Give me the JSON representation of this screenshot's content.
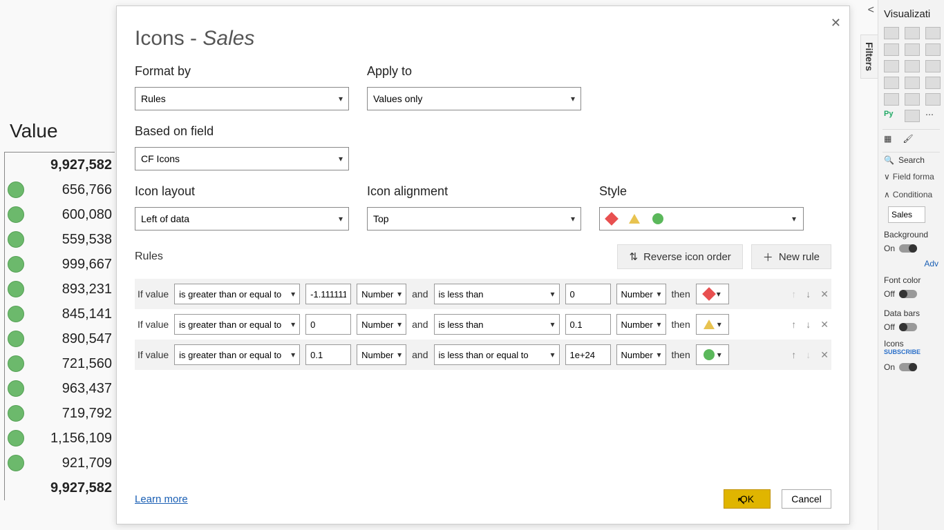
{
  "bg_table": {
    "header": "Value",
    "rows": [
      {
        "val": "9,927,582",
        "bold": true,
        "icon": false
      },
      {
        "val": "656,766",
        "bold": false,
        "icon": true
      },
      {
        "val": "600,080",
        "bold": false,
        "icon": true
      },
      {
        "val": "559,538",
        "bold": false,
        "icon": true
      },
      {
        "val": "999,667",
        "bold": false,
        "icon": true
      },
      {
        "val": "893,231",
        "bold": false,
        "icon": true
      },
      {
        "val": "845,141",
        "bold": false,
        "icon": true
      },
      {
        "val": "890,547",
        "bold": false,
        "icon": true
      },
      {
        "val": "721,560",
        "bold": false,
        "icon": true
      },
      {
        "val": "963,437",
        "bold": false,
        "icon": true
      },
      {
        "val": "719,792",
        "bold": false,
        "icon": true
      },
      {
        "val": "1,156,109",
        "bold": false,
        "icon": true
      },
      {
        "val": "921,709",
        "bold": false,
        "icon": true
      },
      {
        "val": "9,927,582",
        "bold": true,
        "icon": false
      }
    ],
    "icon_color": "#6cb96c",
    "icon_border": "#54a054"
  },
  "dialog": {
    "title_prefix": "Icons - ",
    "title_field": "Sales",
    "close": "✕",
    "labels": {
      "format_by": "Format by",
      "apply_to": "Apply to",
      "based_on": "Based on field",
      "icon_layout": "Icon layout",
      "icon_align": "Icon alignment",
      "style": "Style",
      "rules": "Rules"
    },
    "values": {
      "format_by": "Rules",
      "apply_to": "Values only",
      "based_on": "CF Icons",
      "icon_layout": "Left of data",
      "icon_align": "Top"
    },
    "style_icons": [
      {
        "shape": "diamond",
        "color": "#e85050"
      },
      {
        "shape": "triangle",
        "color": "#e8c350"
      },
      {
        "shape": "circle",
        "color": "#5bb85b"
      }
    ],
    "buttons": {
      "reverse": "Reverse icon order",
      "new_rule": "New rule",
      "ok": "OK",
      "cancel": "Cancel",
      "learn": "Learn more"
    },
    "rule_labels": {
      "if": "If value",
      "and": "and",
      "then": "then",
      "number": "Number"
    },
    "rules": [
      {
        "op1": "is greater than or equal to",
        "v1": "-1.111111",
        "op2": "is less than",
        "v2": "0",
        "icon": {
          "shape": "diamond",
          "color": "#e85050"
        },
        "shade": true,
        "up_disabled": true,
        "down_disabled": false
      },
      {
        "op1": "is greater than or equal to",
        "v1": "0",
        "op2": "is less than",
        "v2": "0.1",
        "icon": {
          "shape": "triangle",
          "color": "#e8c350"
        },
        "shade": false,
        "up_disabled": false,
        "down_disabled": false
      },
      {
        "op1": "is greater than or equal to",
        "v1": "0.1",
        "op2": "is less than or equal to",
        "v2": "1e+24",
        "icon": {
          "shape": "circle",
          "color": "#5bb85b"
        },
        "shade": true,
        "up_disabled": false,
        "down_disabled": true
      }
    ]
  },
  "vis": {
    "title": "Visualizati",
    "filters": "Filters",
    "search": "Search",
    "field_format": "Field forma",
    "conditional": "Conditiona",
    "field_val": "Sales",
    "bg_color": "Background",
    "font_color": "Font color",
    "data_bars": "Data bars",
    "icons_lbl": "Icons",
    "adv": "Adv",
    "on": "On",
    "off": "Off",
    "subscribe": "SUBSCRIBE",
    "py": "Py"
  }
}
